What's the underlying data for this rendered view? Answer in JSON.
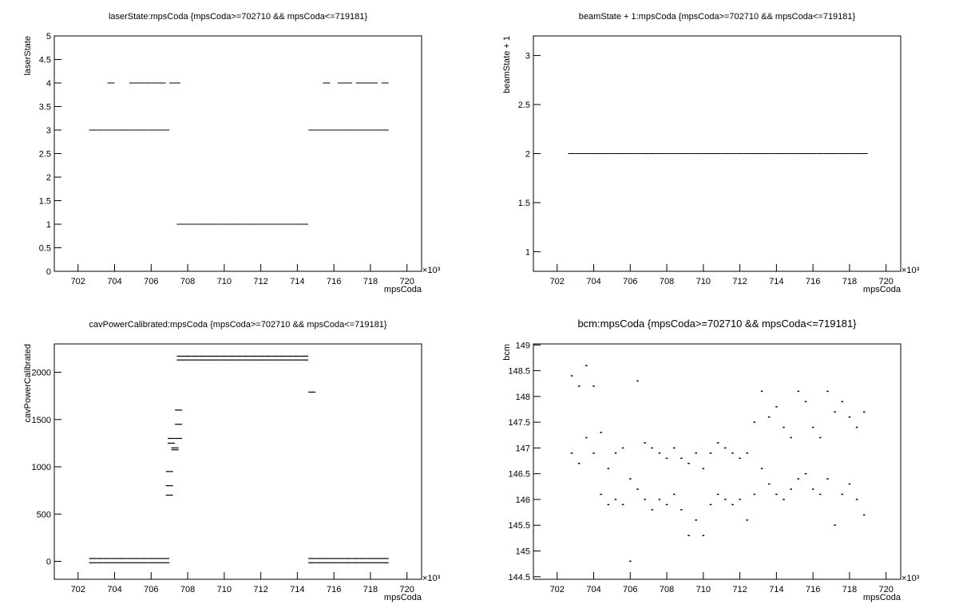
{
  "chart_data": [
    {
      "type": "scatter",
      "title": "laserState:mpsCoda {mpsCoda>=702710 && mpsCoda<=719181}",
      "x_label": "mpsCoda",
      "y_label": "laserState",
      "x_multiplier_label": "×10³",
      "color": "#000000",
      "grid": false,
      "xlim": [
        700.7,
        720.8
      ],
      "xticks": [
        702,
        704,
        706,
        708,
        710,
        712,
        714,
        716,
        718,
        720
      ],
      "ylim": [
        0,
        5
      ],
      "yticks": [
        0,
        0.5,
        1,
        1.5,
        2,
        2.5,
        3,
        3.5,
        4,
        4.5,
        5
      ],
      "x": [
        702.8,
        703.2,
        703.6,
        704.0,
        704.4,
        704.8,
        705.2,
        705.6,
        706.0,
        706.4,
        706.8,
        707.6,
        708.0,
        708.4,
        708.8,
        709.2,
        709.6,
        710.0,
        710.4,
        710.8,
        711.2,
        711.6,
        712.0,
        712.4,
        712.8,
        713.2,
        713.6,
        714.0,
        714.4,
        714.8,
        715.2,
        715.6,
        716.0,
        716.4,
        716.8,
        717.2,
        717.6,
        718.0,
        718.4,
        718.8,
        703.8,
        705.0,
        705.4,
        705.8,
        706.2,
        706.6,
        707.2,
        707.4,
        715.6,
        716.4,
        716.8,
        717.4,
        717.8,
        718.2,
        718.8
      ],
      "y": [
        3,
        3,
        3,
        3,
        3,
        3,
        3,
        3,
        3,
        3,
        3,
        1,
        1,
        1,
        1,
        1,
        1,
        1,
        1,
        1,
        1,
        1,
        1,
        1,
        1,
        1,
        1,
        1,
        1,
        3,
        3,
        3,
        3,
        3,
        3,
        3,
        3,
        3,
        3,
        3,
        4,
        4,
        4,
        4,
        4,
        4,
        4,
        4,
        4,
        4,
        4,
        4,
        4,
        4,
        4
      ]
    },
    {
      "type": "scatter",
      "title": "beamState + 1:mpsCoda {mpsCoda>=702710 && mpsCoda<=719181}",
      "x_label": "mpsCoda",
      "y_label": "beamState + 1",
      "x_multiplier_label": "×10³",
      "color": "#000000",
      "grid": false,
      "xlim": [
        700.7,
        720.8
      ],
      "xticks": [
        702,
        704,
        706,
        708,
        710,
        712,
        714,
        716,
        718,
        720
      ],
      "ylim": [
        0.8,
        3.2
      ],
      "yticks": [
        1,
        1.5,
        2,
        2.5,
        3
      ],
      "x": [
        702.8,
        703.2,
        703.6,
        704.0,
        704.4,
        704.8,
        705.2,
        705.6,
        706.0,
        706.4,
        706.8,
        707.2,
        707.6,
        708.0,
        708.4,
        708.8,
        709.2,
        709.6,
        710.0,
        710.4,
        710.8,
        711.2,
        711.6,
        712.0,
        712.4,
        712.8,
        713.2,
        713.6,
        714.0,
        714.4,
        714.8,
        715.2,
        715.6,
        716.0,
        716.4,
        716.8,
        717.2,
        717.6,
        718.0,
        718.4,
        718.8
      ],
      "y": [
        2,
        2,
        2,
        2,
        2,
        2,
        2,
        2,
        2,
        2,
        2,
        2,
        2,
        2,
        2,
        2,
        2,
        2,
        2,
        2,
        2,
        2,
        2,
        2,
        2,
        2,
        2,
        2,
        2,
        2,
        2,
        2,
        2,
        2,
        2,
        2,
        2,
        2,
        2,
        2,
        2
      ]
    },
    {
      "type": "scatter",
      "title": "cavPowerCalibrated:mpsCoda {mpsCoda>=702710 && mpsCoda<=719181}",
      "x_label": "mpsCoda",
      "y_label": "cavPowerCalibrated",
      "x_multiplier_label": "×10³",
      "color": "#000000",
      "grid": false,
      "xlim": [
        700.7,
        720.8
      ],
      "xticks": [
        702,
        704,
        706,
        708,
        710,
        712,
        714,
        716,
        718,
        720
      ],
      "ylim": [
        -190,
        2300
      ],
      "yticks": [
        0,
        500,
        1000,
        1500,
        2000
      ],
      "x": [
        702.8,
        703.2,
        703.6,
        704.0,
        704.4,
        704.8,
        705.2,
        705.6,
        706.0,
        706.4,
        706.8,
        702.8,
        703.2,
        703.6,
        704.0,
        704.4,
        704.8,
        705.2,
        705.6,
        706.0,
        706.4,
        706.8,
        707.0,
        707.0,
        707.0,
        707.1,
        707.1,
        707.3,
        707.3,
        707.5,
        707.5,
        707.5,
        707.6,
        708.0,
        708.4,
        708.8,
        709.2,
        709.6,
        710.0,
        710.4,
        710.8,
        711.2,
        711.6,
        712.0,
        712.4,
        712.8,
        713.2,
        713.6,
        714.0,
        714.4,
        707.6,
        708.0,
        708.4,
        708.8,
        709.2,
        709.6,
        710.0,
        710.4,
        710.8,
        711.2,
        711.6,
        712.0,
        712.4,
        712.8,
        713.2,
        713.6,
        714.0,
        714.4,
        714.8,
        714.8,
        715.2,
        715.6,
        716.0,
        716.4,
        716.8,
        717.2,
        717.6,
        718.0,
        718.4,
        718.8,
        714.8,
        715.2,
        715.6,
        716.0,
        716.4,
        716.8,
        717.2,
        717.6,
        718.0,
        718.4,
        718.8
      ],
      "y": [
        30,
        30,
        30,
        30,
        30,
        30,
        30,
        30,
        30,
        30,
        30,
        -15,
        -15,
        -15,
        -15,
        -15,
        -15,
        -15,
        -15,
        -15,
        -15,
        -15,
        700,
        800,
        950,
        1250,
        1300,
        1180,
        1200,
        1300,
        1450,
        1600,
        2170,
        2170,
        2170,
        2170,
        2170,
        2170,
        2170,
        2170,
        2170,
        2170,
        2170,
        2170,
        2170,
        2170,
        2170,
        2170,
        2170,
        2170,
        2130,
        2130,
        2130,
        2130,
        2130,
        2130,
        2130,
        2130,
        2130,
        2130,
        2130,
        2130,
        2130,
        2130,
        2130,
        2130,
        2130,
        2130,
        1790,
        30,
        30,
        30,
        30,
        30,
        30,
        30,
        30,
        30,
        30,
        30,
        -15,
        -15,
        -15,
        -15,
        -15,
        -15,
        -15,
        -15,
        -15,
        -15,
        -15
      ]
    },
    {
      "type": "scatter",
      "title": "bcm:mpsCoda {mpsCoda>=702710 && mpsCoda<=719181}",
      "x_label": "mpsCoda",
      "y_label": "bcm",
      "x_multiplier_label": "×10³",
      "color": "#000000",
      "grid": false,
      "xlim": [
        700.7,
        720.8
      ],
      "xticks": [
        702,
        704,
        706,
        708,
        710,
        712,
        714,
        716,
        718,
        720
      ],
      "ylim": [
        144.45,
        149.02
      ],
      "yticks": [
        144.5,
        145,
        145.5,
        146,
        146.5,
        147,
        147.5,
        148,
        148.5,
        149
      ],
      "x": [
        702.8,
        703.2,
        703.6,
        704.0,
        704.4,
        704.8,
        705.2,
        705.6,
        706.0,
        706.4,
        706.8,
        707.2,
        707.6,
        708.0,
        708.4,
        708.8,
        709.2,
        709.6,
        710.0,
        710.4,
        710.8,
        711.2,
        711.6,
        712.0,
        712.4,
        712.8,
        713.2,
        713.6,
        714.0,
        714.4,
        714.8,
        715.2,
        715.6,
        716.0,
        716.4,
        716.8,
        717.2,
        717.6,
        718.0,
        718.4,
        718.8,
        702.8,
        703.2,
        703.6,
        704.0,
        704.4,
        704.8,
        705.2,
        705.6,
        706.0,
        706.4,
        706.8,
        707.2,
        707.6,
        708.0,
        708.4,
        708.8,
        709.2,
        709.6,
        710.0,
        710.4,
        710.8,
        711.2,
        711.6,
        712.0,
        712.4,
        712.8,
        713.2,
        713.6,
        714.0,
        714.4,
        714.8,
        715.2,
        715.6,
        716.0,
        716.4,
        716.8,
        717.2,
        717.6,
        718.0,
        718.4,
        718.8
      ],
      "y": [
        148.4,
        148.2,
        148.6,
        148.2,
        147.3,
        146.6,
        146.9,
        147.0,
        146.4,
        148.3,
        147.1,
        147.0,
        146.9,
        146.8,
        147.0,
        146.8,
        146.7,
        146.9,
        146.6,
        146.9,
        147.1,
        147.0,
        146.9,
        146.8,
        146.9,
        147.5,
        148.1,
        147.6,
        147.8,
        147.4,
        147.2,
        148.1,
        147.9,
        147.4,
        147.2,
        148.1,
        147.7,
        147.9,
        147.6,
        147.4,
        147.7,
        146.9,
        146.7,
        147.2,
        146.9,
        146.1,
        145.9,
        146.0,
        145.9,
        144.8,
        146.2,
        146.0,
        145.8,
        146.0,
        145.9,
        146.1,
        145.8,
        145.3,
        145.6,
        145.3,
        145.9,
        146.1,
        146.0,
        145.9,
        146.0,
        145.6,
        146.1,
        146.6,
        146.3,
        146.1,
        146.0,
        146.2,
        146.4,
        146.5,
        146.2,
        146.1,
        146.4,
        145.5,
        146.1,
        146.3,
        146.0,
        145.7
      ]
    }
  ]
}
